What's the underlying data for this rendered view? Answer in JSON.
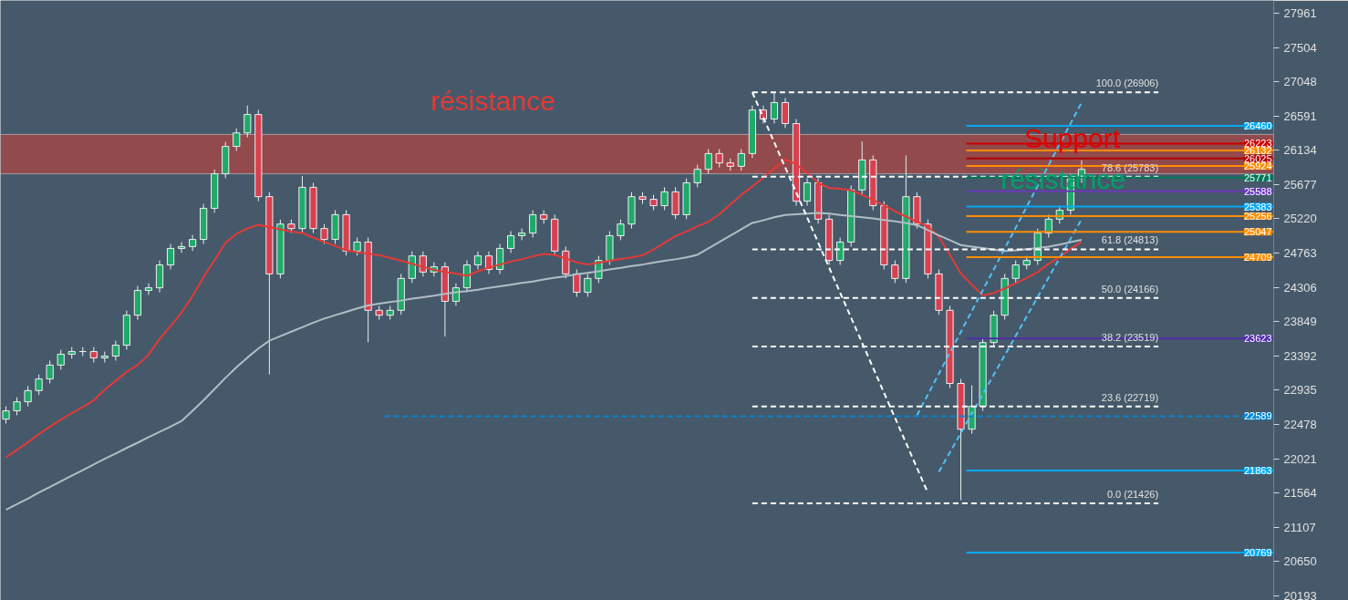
{
  "chart_data": {
    "type": "candlestick",
    "categories": [
      null,
      null,
      null,
      null,
      null,
      null,
      null,
      null,
      null,
      null,
      null,
      null,
      null,
      null,
      null,
      null,
      null,
      null,
      null,
      null,
      null,
      null,
      null,
      null,
      null,
      null,
      null,
      null,
      null,
      null,
      null,
      null,
      null,
      null,
      null,
      null,
      null,
      null,
      null,
      null,
      null,
      null,
      null,
      null,
      null,
      null,
      null,
      null,
      null,
      null,
      null,
      null,
      null,
      null,
      null,
      null,
      null,
      null,
      null,
      null,
      null,
      null,
      null,
      null,
      null,
      null,
      null,
      null,
      null,
      null,
      null,
      null,
      null,
      null,
      null,
      null,
      null,
      null,
      null,
      null,
      null,
      null,
      null,
      null,
      null,
      null,
      null,
      null,
      null,
      null,
      null,
      null,
      null,
      null,
      null,
      null,
      null,
      null,
      null,
      null,
      null,
      null,
      null,
      null,
      null,
      null,
      null,
      null,
      null,
      null,
      null,
      null,
      null,
      null,
      null,
      null
    ],
    "ohlc": [
      [
        22550,
        22720,
        22490,
        22660
      ],
      [
        22660,
        22840,
        22600,
        22780
      ],
      [
        22780,
        22990,
        22720,
        22930
      ],
      [
        22930,
        23145,
        22870,
        23085
      ],
      [
        23085,
        23330,
        23025,
        23270
      ],
      [
        23270,
        23475,
        23210,
        23415
      ],
      [
        23415,
        23510,
        23355,
        23450
      ],
      [
        23450,
        23510,
        23390,
        23450
      ],
      [
        23450,
        23510,
        23305,
        23365
      ],
      [
        23365,
        23450,
        23305,
        23390
      ],
      [
        23390,
        23595,
        23330,
        23535
      ],
      [
        23535,
        23995,
        23475,
        23935
      ],
      [
        23935,
        24325,
        23875,
        24265
      ],
      [
        24265,
        24360,
        24205,
        24300
      ],
      [
        24300,
        24665,
        24240,
        24605
      ],
      [
        24605,
        24885,
        24545,
        24825
      ],
      [
        24825,
        24910,
        24765,
        24850
      ],
      [
        24850,
        25005,
        24790,
        24945
      ],
      [
        24945,
        25420,
        24885,
        25360
      ],
      [
        25360,
        25880,
        25300,
        25820
      ],
      [
        25820,
        26245,
        25760,
        26185
      ],
      [
        26185,
        26425,
        26125,
        26365
      ],
      [
        26365,
        26730,
        26305,
        26610
      ],
      [
        26610,
        26670,
        25455,
        25515
      ],
      [
        25515,
        25575,
        23145,
        24485
      ],
      [
        24485,
        25210,
        24425,
        25150
      ],
      [
        25150,
        25210,
        25030,
        25090
      ],
      [
        25090,
        25790,
        25030,
        25640
      ],
      [
        25640,
        25700,
        25030,
        25090
      ],
      [
        25090,
        25150,
        24885,
        24945
      ],
      [
        24945,
        25335,
        24885,
        25275
      ],
      [
        25275,
        25335,
        24730,
        24790
      ],
      [
        24790,
        24970,
        24730,
        24910
      ],
      [
        24910,
        24970,
        23575,
        24000
      ],
      [
        24000,
        24060,
        23875,
        23935
      ],
      [
        23935,
        24060,
        23875,
        24000
      ],
      [
        24000,
        24485,
        23940,
        24425
      ],
      [
        24425,
        24785,
        24365,
        24725
      ],
      [
        24725,
        24785,
        24450,
        24510
      ],
      [
        24510,
        24640,
        24450,
        24580
      ],
      [
        24580,
        24640,
        23650,
        24120
      ],
      [
        24120,
        24360,
        24060,
        24300
      ],
      [
        24300,
        24665,
        24240,
        24605
      ],
      [
        24605,
        24785,
        24545,
        24725
      ],
      [
        24725,
        24785,
        24485,
        24545
      ],
      [
        24545,
        24885,
        24485,
        24825
      ],
      [
        24825,
        25055,
        24765,
        24995
      ],
      [
        24995,
        25090,
        24935,
        25030
      ],
      [
        25030,
        25335,
        24970,
        25275
      ],
      [
        25275,
        25335,
        25155,
        25215
      ],
      [
        25215,
        25275,
        24730,
        24790
      ],
      [
        24790,
        24850,
        24425,
        24485
      ],
      [
        24485,
        24545,
        24180,
        24240
      ],
      [
        24240,
        24485,
        24180,
        24425
      ],
      [
        24425,
        24725,
        24365,
        24665
      ],
      [
        24665,
        25055,
        24605,
        24995
      ],
      [
        24995,
        25210,
        24935,
        25150
      ],
      [
        25150,
        25575,
        25090,
        25515
      ],
      [
        25515,
        25575,
        25420,
        25480
      ],
      [
        25480,
        25540,
        25335,
        25395
      ],
      [
        25395,
        25640,
        25335,
        25580
      ],
      [
        25580,
        25640,
        25215,
        25275
      ],
      [
        25275,
        25760,
        25215,
        25700
      ],
      [
        25700,
        25940,
        25640,
        25880
      ],
      [
        25880,
        26150,
        25820,
        26090
      ],
      [
        26090,
        26150,
        25905,
        25965
      ],
      [
        25965,
        26025,
        25860,
        25920
      ],
      [
        25920,
        26150,
        25860,
        26090
      ],
      [
        26090,
        26730,
        26030,
        26670
      ],
      [
        26670,
        26730,
        26490,
        26550
      ],
      [
        26550,
        26915,
        26490,
        26770
      ],
      [
        26770,
        26830,
        26430,
        26490
      ],
      [
        26490,
        26550,
        25395,
        25455
      ],
      [
        25455,
        25760,
        25395,
        25700
      ],
      [
        25700,
        25760,
        25155,
        25215
      ],
      [
        25215,
        25275,
        24605,
        24665
      ],
      [
        24665,
        24970,
        24605,
        24910
      ],
      [
        24910,
        25665,
        24850,
        25605
      ],
      [
        25605,
        26250,
        25545,
        26005
      ],
      [
        26005,
        26065,
        25335,
        25395
      ],
      [
        25395,
        25455,
        24545,
        24605
      ],
      [
        24605,
        24665,
        24365,
        24425
      ],
      [
        24425,
        26065,
        24365,
        25515
      ],
      [
        25515,
        25575,
        25090,
        25150
      ],
      [
        25150,
        25210,
        24425,
        24485
      ],
      [
        24485,
        24545,
        23940,
        24000
      ],
      [
        24000,
        24060,
        22965,
        23025
      ],
      [
        23025,
        23085,
        21470,
        22415
      ],
      [
        22415,
        23000,
        22355,
        22720
      ],
      [
        22720,
        23630,
        22660,
        23570
      ],
      [
        23570,
        23995,
        23510,
        23935
      ],
      [
        23935,
        24485,
        23875,
        24425
      ],
      [
        24425,
        24665,
        24365,
        24605
      ],
      [
        24605,
        24725,
        24545,
        24665
      ],
      [
        24665,
        25090,
        24605,
        25030
      ],
      [
        25030,
        25275,
        24970,
        25215
      ],
      [
        25215,
        25395,
        25155,
        25335
      ],
      [
        25335,
        25820,
        25275,
        25760
      ],
      [
        25760,
        26000,
        25700,
        25880
      ],
      null,
      null,
      null,
      null,
      null,
      null,
      null,
      null,
      null,
      null,
      null,
      null,
      null,
      null,
      null,
      null,
      null
    ],
    "series": [
      {
        "type": "line",
        "color": "#e53935",
        "values": [
          22040,
          22140,
          22240,
          22350,
          22450,
          22540,
          22630,
          22710,
          22800,
          22940,
          23060,
          23180,
          23270,
          23410,
          23620,
          23790,
          23970,
          24190,
          24440,
          24670,
          24900,
          25020,
          25090,
          25140,
          25110,
          25080,
          25050,
          25030,
          24970,
          24910,
          24860,
          24800,
          24775,
          24755,
          24735,
          24700,
          24660,
          24620,
          24580,
          24540,
          24510,
          24490,
          24460,
          24520,
          24570,
          24610,
          24650,
          24680,
          24720,
          24750,
          24740,
          24690,
          24640,
          24610,
          24635,
          24660,
          24685,
          24705,
          24735,
          24810,
          24900,
          24990,
          25050,
          25120,
          25180,
          25280,
          25410,
          25540,
          25650,
          25770,
          25890,
          26010,
          25950,
          25830,
          25700,
          25630,
          25620,
          25600,
          25540,
          25470,
          25400,
          25320,
          25250,
          25180,
          25120,
          24980,
          24740,
          24490,
          24340,
          24200,
          24230,
          24290,
          24360,
          24430,
          24510,
          24620,
          24710,
          24820,
          24910,
          null,
          null,
          null,
          null,
          null,
          null,
          null,
          null,
          null,
          null,
          null,
          null,
          null,
          null,
          null,
          null,
          null
        ]
      },
      {
        "type": "line",
        "color": "#b0bec5",
        "values": [
          21340,
          21415,
          21490,
          21570,
          21645,
          21720,
          21795,
          21870,
          21945,
          22020,
          22090,
          22165,
          22235,
          22310,
          22380,
          22450,
          22525,
          22660,
          22800,
          22950,
          23100,
          23240,
          23370,
          23490,
          23595,
          23655,
          23715,
          23775,
          23835,
          23890,
          23935,
          23980,
          24025,
          24065,
          24090,
          24110,
          24130,
          24155,
          24175,
          24195,
          24220,
          24240,
          24255,
          24275,
          24300,
          24320,
          24340,
          24365,
          24385,
          24410,
          24435,
          24455,
          24480,
          24500,
          24520,
          24545,
          24565,
          24590,
          24610,
          24635,
          24660,
          24680,
          24705,
          24740,
          24825,
          24910,
          24995,
          25080,
          25165,
          25200,
          25240,
          25270,
          25280,
          25290,
          25300,
          25290,
          25270,
          25255,
          25240,
          25225,
          25205,
          25185,
          25165,
          25135,
          25070,
          25000,
          24935,
          24870,
          24850,
          24830,
          24810,
          24790,
          24800,
          24815,
          24830,
          24850,
          24875,
          24910,
          24940,
          null,
          null,
          null,
          null,
          null,
          null,
          null,
          null,
          null,
          null,
          null,
          null,
          null,
          null,
          null,
          null,
          null
        ]
      },
      {
        "type": "line",
        "color": "#ffffff",
        "line_style": "dashed",
        "values": [
          null,
          null,
          null,
          null,
          null,
          null,
          null,
          null,
          null,
          null,
          null,
          null,
          null,
          null,
          null,
          null,
          null,
          null,
          null,
          null,
          null,
          null,
          null,
          null,
          null,
          null,
          null,
          null,
          null,
          null,
          null,
          null,
          null,
          null,
          null,
          null,
          null,
          null,
          null,
          null,
          null,
          null,
          null,
          null,
          null,
          null,
          null,
          null,
          null,
          null,
          null,
          null,
          null,
          null,
          null,
          null,
          null,
          null,
          null,
          null,
          null,
          null,
          null,
          null,
          null,
          null,
          null,
          null,
          26906,
          null,
          null,
          null,
          null,
          null,
          null,
          null,
          null,
          null,
          null,
          null,
          null,
          null,
          null,
          null,
          21566,
          null,
          null,
          null,
          null,
          null,
          null,
          null,
          null,
          null,
          null,
          null,
          null,
          null,
          null,
          null,
          null,
          null,
          null,
          null,
          null,
          null,
          null,
          null,
          null,
          null,
          null,
          null,
          null,
          null,
          null,
          null
        ]
      },
      {
        "type": "line",
        "color": "#4fc3f7",
        "line_style": "dashed",
        "values": [
          null,
          null,
          null,
          null,
          null,
          null,
          null,
          null,
          null,
          null,
          null,
          null,
          null,
          null,
          null,
          null,
          null,
          null,
          null,
          null,
          null,
          null,
          null,
          null,
          null,
          null,
          null,
          null,
          null,
          null,
          null,
          null,
          null,
          null,
          null,
          null,
          null,
          null,
          null,
          null,
          null,
          null,
          null,
          null,
          null,
          null,
          null,
          null,
          null,
          null,
          null,
          null,
          null,
          null,
          null,
          null,
          null,
          null,
          null,
          null,
          null,
          null,
          null,
          null,
          null,
          null,
          null,
          null,
          null,
          null,
          null,
          null,
          null,
          null,
          null,
          null,
          null,
          null,
          null,
          null,
          null,
          null,
          null,
          22600,
          null,
          null,
          null,
          null,
          null,
          null,
          null,
          null,
          null,
          null,
          null,
          null,
          null,
          null,
          26770,
          null,
          null,
          null,
          null,
          null,
          null,
          null,
          null,
          null,
          null,
          null,
          null,
          null,
          null,
          null,
          null,
          null
        ]
      },
      {
        "type": "line",
        "color": "#4fc3f7",
        "line_style": "dashed",
        "values": [
          null,
          null,
          null,
          null,
          null,
          null,
          null,
          null,
          null,
          null,
          null,
          null,
          null,
          null,
          null,
          null,
          null,
          null,
          null,
          null,
          null,
          null,
          null,
          null,
          null,
          null,
          null,
          null,
          null,
          null,
          null,
          null,
          null,
          null,
          null,
          null,
          null,
          null,
          null,
          null,
          null,
          null,
          null,
          null,
          null,
          null,
          null,
          null,
          null,
          null,
          null,
          null,
          null,
          null,
          null,
          null,
          null,
          null,
          null,
          null,
          null,
          null,
          null,
          null,
          null,
          null,
          null,
          null,
          null,
          null,
          null,
          null,
          null,
          null,
          null,
          null,
          null,
          null,
          null,
          null,
          null,
          null,
          null,
          null,
          null,
          21846,
          null,
          null,
          null,
          null,
          null,
          null,
          null,
          null,
          null,
          null,
          null,
          null,
          25214,
          null,
          null,
          null,
          null,
          null,
          null,
          null,
          null,
          null,
          null,
          null,
          null,
          null,
          null,
          null,
          null,
          null
        ]
      }
    ],
    "ylim": [
      20132,
      28131
    ],
    "yticks": [
      20193,
      20650,
      21107,
      21564,
      22021,
      22478,
      22935,
      23392,
      23849,
      24306,
      24763,
      25220,
      25677,
      26134,
      26591,
      27048,
      27504,
      27961
    ],
    "tick_labels": "y",
    "grid": false,
    "bands": [
      {
        "axis": "y",
        "from": 25820,
        "to": 26345,
        "color": "#a04848"
      }
    ],
    "ref_lines": [
      {
        "axis": "y",
        "value": 26906,
        "label": "100.0 (26906)",
        "color": "#ffffff",
        "line_style": "dashed"
      },
      {
        "axis": "y",
        "value": 25783,
        "label": "78.6 (25783)",
        "color": "#ffffff",
        "line_style": "dashed"
      },
      {
        "axis": "y",
        "value": 24813,
        "label": "61.8 (24813)",
        "color": "#ffffff",
        "line_style": "dashed"
      },
      {
        "axis": "y",
        "value": 24166,
        "label": "50.0 (24166)",
        "color": "#ffffff",
        "line_style": "dashed"
      },
      {
        "axis": "y",
        "value": 23519,
        "label": "38.2 (23519)",
        "color": "#ffffff",
        "line_style": "dashed"
      },
      {
        "axis": "y",
        "value": 22719,
        "label": "23.6 (22719)",
        "color": "#ffffff",
        "line_style": "dashed"
      },
      {
        "axis": "y",
        "value": 21426,
        "label": "0.0 (21426)",
        "color": "#ffffff",
        "line_style": "dashed"
      },
      {
        "axis": "y",
        "value": 26460,
        "label": "26460",
        "color": "#03a9f4"
      },
      {
        "axis": "y",
        "value": 26223,
        "label": "26223",
        "color": "#cc0000"
      },
      {
        "axis": "y",
        "value": 26132,
        "label": "26132",
        "color": "#ff8c00"
      },
      {
        "axis": "y",
        "value": 26025,
        "label": "26025",
        "color": "#b00000"
      },
      {
        "axis": "y",
        "value": 25924,
        "label": "25924",
        "color": "#ff8c00"
      },
      {
        "axis": "y",
        "value": 25771,
        "label": "25771",
        "color": "#00795a"
      },
      {
        "axis": "y",
        "value": 25588,
        "label": "25588",
        "color": "#673ab7"
      },
      {
        "axis": "y",
        "value": 25383,
        "label": "25383",
        "color": "#03a9f4"
      },
      {
        "axis": "y",
        "value": 25256,
        "label": "25256",
        "color": "#ff8c00"
      },
      {
        "axis": "y",
        "value": 25047,
        "label": "25047",
        "color": "#ff8c00"
      },
      {
        "axis": "y",
        "value": 24709,
        "label": "24709",
        "color": "#ff8c00"
      },
      {
        "axis": "y",
        "value": 23623,
        "label": "23623",
        "color": "#512da8"
      },
      {
        "axis": "y",
        "value": 22589,
        "label": "22589",
        "color": "#0288d1",
        "line_style": "dashed"
      },
      {
        "axis": "y",
        "value": 21863,
        "label": "21863",
        "color": "#03a9f4"
      },
      {
        "axis": "y",
        "value": 20769,
        "label": "20769",
        "color": "#03a9f4"
      }
    ],
    "annotations": [
      "résistance",
      "Support",
      "résistance"
    ]
  }
}
